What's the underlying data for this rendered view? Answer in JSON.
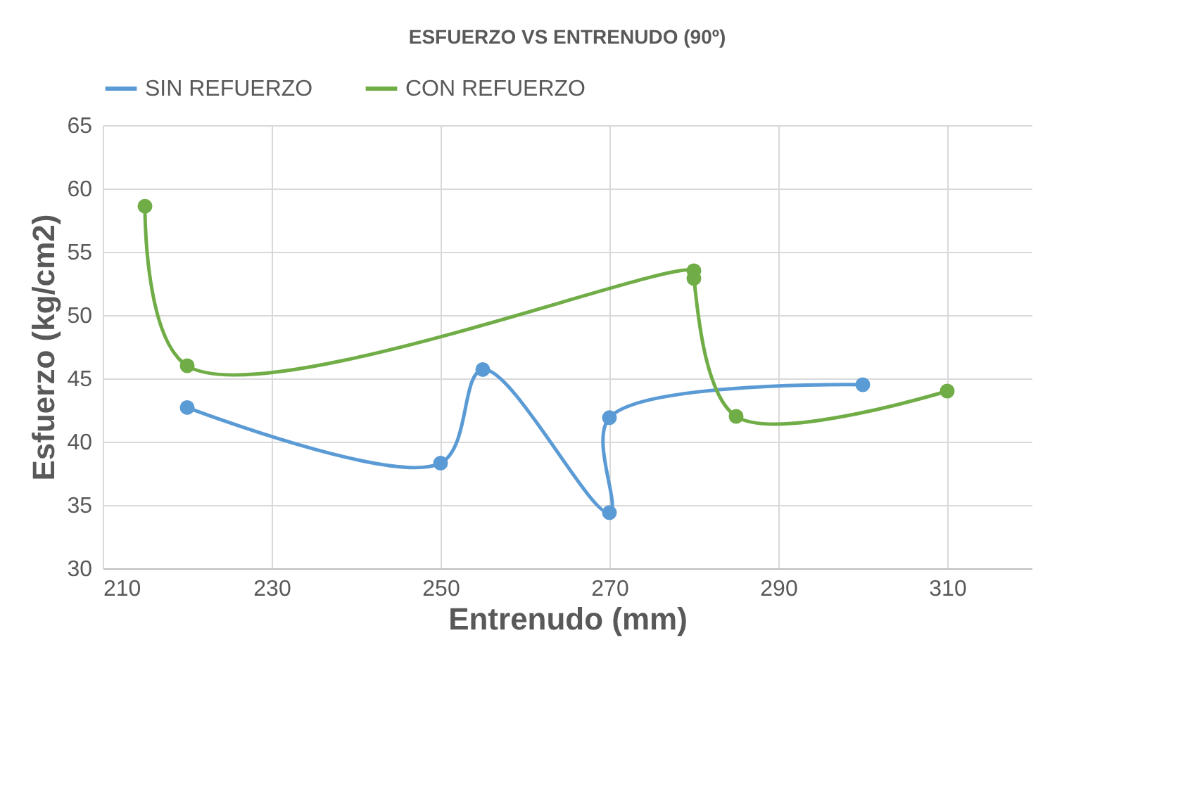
{
  "chart_data": {
    "type": "line",
    "title": "ESFUERZO VS ENTRENUDO (90º)",
    "xlabel": "Entrenudo (mm)",
    "ylabel": "Esfuerzo (kg/cm2)",
    "xlim": [
      210,
      320
    ],
    "xticks": [
      210,
      230,
      250,
      270,
      290,
      310
    ],
    "ylim": [
      30,
      65
    ],
    "yticks": [
      30,
      35,
      40,
      45,
      50,
      55,
      60,
      65
    ],
    "grid": true,
    "legend": "top",
    "marker": "circle",
    "line_style": "solid",
    "series": [
      {
        "name": "SIN REFUERZO",
        "color": "#5b9bd5",
        "x": [
          220,
          250,
          255,
          270,
          270,
          300
        ],
        "values": [
          42.7,
          38.3,
          45.7,
          34.4,
          41.9,
          44.5
        ]
      },
      {
        "name": "CON REFUERZO",
        "color": "#70ad47",
        "x": [
          215,
          220,
          280,
          280,
          285,
          310
        ],
        "values": [
          58.6,
          46.0,
          53.5,
          52.9,
          42.0,
          44.0
        ]
      }
    ]
  }
}
